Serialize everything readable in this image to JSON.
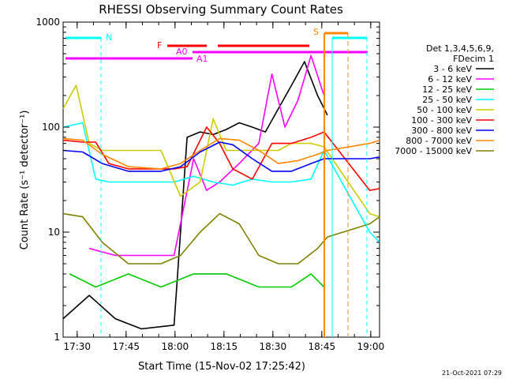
{
  "chart_data": {
    "type": "line",
    "title": "RHESSI Observing Summary Count Rates",
    "xlabel": "Start Time (15-Nov-02 17:25:42)",
    "ylabel": "Count Rate (s⁻¹ detector⁻¹)",
    "y_scale": "log",
    "ylim": [
      1,
      1000
    ],
    "xlim_minutes_after_start": [
      0,
      97
    ],
    "x_tick_labels": [
      "17:30",
      "17:45",
      "18:00",
      "18:15",
      "18:30",
      "18:45",
      "19:00"
    ],
    "x_tick_minutes": [
      4.3,
      19.3,
      34.3,
      49.3,
      64.3,
      79.3,
      94.3
    ],
    "y_tick_labels": [
      "1",
      "10",
      "100",
      "1000"
    ],
    "y_tick_values": [
      1,
      10,
      100,
      1000
    ],
    "legend_header": [
      "Det 1,3,4,5,6,9,",
      "FDecim 1"
    ],
    "legend_position": "right",
    "series": [
      {
        "name": "3 - 6 keV",
        "color": "#000000",
        "x": [
          0,
          8,
          16,
          24,
          34,
          38,
          42,
          46,
          50,
          54,
          58,
          62,
          66,
          70,
          74,
          78,
          81
        ],
        "values": [
          1.5,
          2.5,
          1.5,
          1.2,
          1.3,
          80,
          90,
          85,
          95,
          110,
          100,
          90,
          150,
          250,
          420,
          200,
          130
        ]
      },
      {
        "name": "6 - 12 keV",
        "color": "#ff00ff",
        "x": [
          8,
          16,
          24,
          34,
          40,
          44,
          48,
          54,
          60,
          64,
          68,
          72,
          76,
          80
        ],
        "values": [
          7,
          6,
          6,
          6,
          50,
          25,
          30,
          45,
          70,
          320,
          100,
          180,
          480,
          200
        ]
      },
      {
        "name": "12 - 25 keV",
        "color": "#00cc00",
        "x": [
          2,
          10,
          20,
          30,
          40,
          50,
          60,
          70,
          76,
          80
        ],
        "values": [
          4,
          3,
          4,
          3,
          4,
          4,
          3,
          3,
          4,
          3
        ]
      },
      {
        "name": "25 - 50 keV",
        "color": "#00ffff",
        "x": [
          0,
          6,
          10,
          14,
          20,
          28,
          34,
          40,
          46,
          52,
          58,
          64,
          70,
          76,
          80,
          94,
          97
        ],
        "values": [
          100,
          110,
          32,
          30,
          30,
          30,
          30,
          34,
          30,
          28,
          32,
          30,
          30,
          32,
          60,
          10,
          8
        ]
      },
      {
        "name": "50 - 100 keV",
        "color": "#cccc00",
        "x": [
          0,
          4,
          8,
          12,
          20,
          30,
          36,
          42,
          46,
          50,
          56,
          62,
          66,
          70,
          76,
          80,
          94,
          97
        ],
        "values": [
          150,
          250,
          70,
          60,
          60,
          60,
          22,
          30,
          120,
          60,
          60,
          60,
          60,
          70,
          70,
          65,
          15,
          14
        ]
      },
      {
        "name": "100 - 300 keV",
        "color": "#ff0000",
        "x": [
          0,
          6,
          10,
          14,
          20,
          28,
          34,
          38,
          44,
          48,
          52,
          58,
          64,
          70,
          76,
          80,
          94,
          97
        ],
        "values": [
          75,
          72,
          72,
          45,
          40,
          40,
          40,
          42,
          100,
          70,
          40,
          32,
          70,
          70,
          80,
          90,
          25,
          26
        ]
      },
      {
        "name": "300 - 800 keV",
        "color": "#0000ff",
        "x": [
          0,
          6,
          12,
          20,
          30,
          36,
          42,
          48,
          52,
          58,
          64,
          70,
          76,
          80,
          94,
          97
        ],
        "values": [
          60,
          58,
          45,
          38,
          38,
          42,
          58,
          72,
          68,
          50,
          38,
          38,
          45,
          50,
          50,
          52
        ]
      },
      {
        "name": "800 - 7000 keV",
        "color": "#ff8800",
        "x": [
          0,
          6,
          12,
          20,
          30,
          36,
          42,
          48,
          54,
          60,
          66,
          72,
          78,
          81,
          94,
          97
        ],
        "values": [
          78,
          75,
          55,
          42,
          40,
          45,
          60,
          78,
          75,
          60,
          45,
          48,
          55,
          60,
          70,
          75
        ]
      },
      {
        "name": "7000 - 15000 keV",
        "color": "#808000",
        "x": [
          0,
          6,
          12,
          20,
          30,
          36,
          42,
          48,
          54,
          60,
          66,
          72,
          78,
          81,
          94,
          97
        ],
        "values": [
          15,
          14,
          8,
          5,
          5,
          6,
          10,
          15,
          12,
          6,
          5,
          5,
          7,
          9,
          12,
          14
        ]
      }
    ],
    "annotations": [
      {
        "label": "N",
        "color": "#00ffff"
      },
      {
        "label": "F",
        "color": "#ff0000"
      },
      {
        "label": "A0",
        "color": "#ff00ff"
      },
      {
        "label": "A1",
        "color": "#ff00ff"
      },
      {
        "label": "S",
        "color": "#ff8800"
      }
    ],
    "footer_date": "21-Oct-2021 07:29"
  }
}
